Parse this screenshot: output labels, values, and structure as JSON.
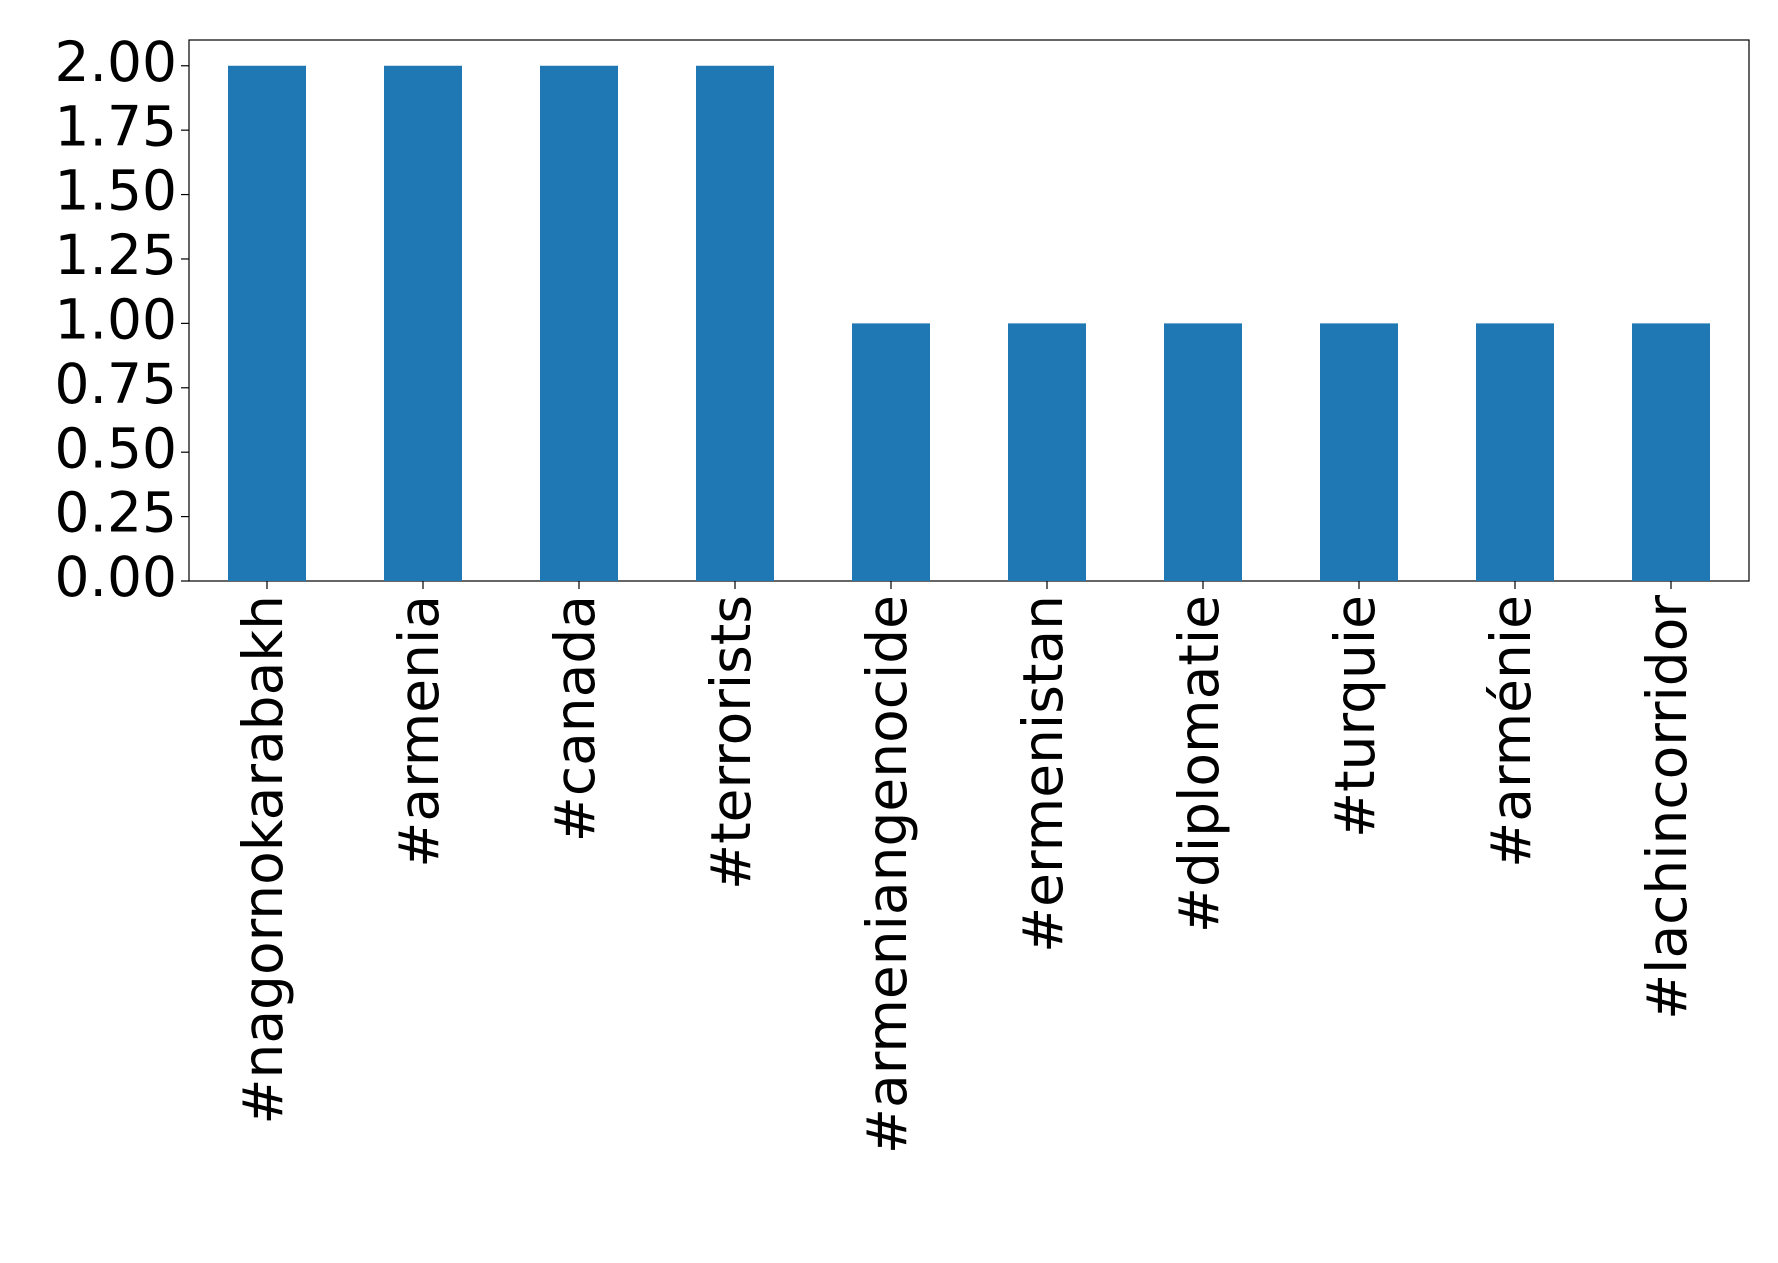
{
  "chart_data": {
    "type": "bar",
    "categories": [
      "#nagornokarabakh",
      "#armenia",
      "#canada",
      "#terrorists",
      "#armeniangenocide",
      "#ermenistan",
      "#diplomatie",
      "#turquie",
      "#arménie",
      "#lachincorridor"
    ],
    "values": [
      2,
      2,
      2,
      2,
      1,
      1,
      1,
      1,
      1,
      1
    ],
    "color": "#1f77b4",
    "ylim": [
      0,
      2.1
    ],
    "yticks": [
      {
        "value": 0,
        "label": "0.00"
      },
      {
        "value": 0.25,
        "label": "0.25"
      },
      {
        "value": 0.5,
        "label": "0.50"
      },
      {
        "value": 0.75,
        "label": "0.75"
      },
      {
        "value": 1,
        "label": "1.00"
      },
      {
        "value": 1.25,
        "label": "1.25"
      },
      {
        "value": 1.5,
        "label": "1.50"
      },
      {
        "value": 1.75,
        "label": "1.75"
      },
      {
        "value": 2,
        "label": "2.00"
      }
    ],
    "grid": false
  }
}
